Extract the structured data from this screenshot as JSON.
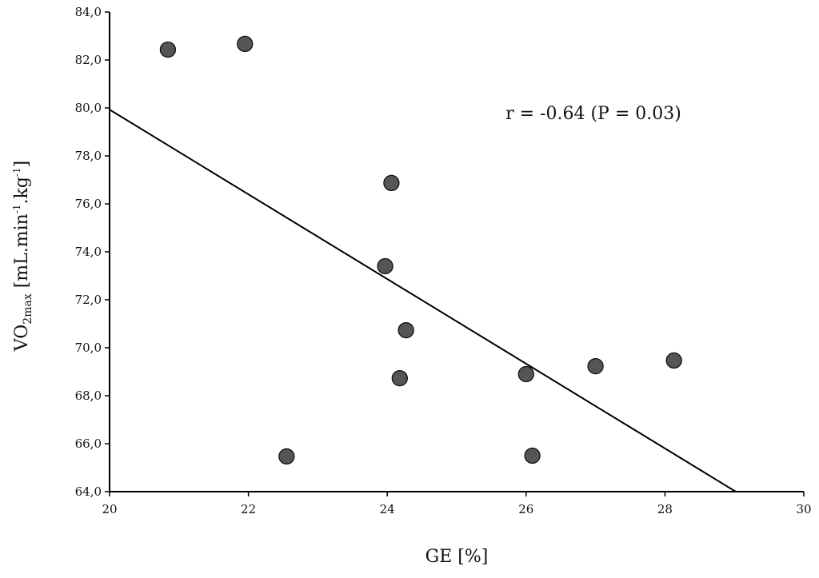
{
  "chart_data": {
    "type": "scatter",
    "title": "",
    "xlabel": "GE [%]",
    "ylabel": {
      "main": "VO",
      "sub": "2max",
      "unit_a": " [mL.min",
      "sup_a": "-1",
      "unit_b": ".kg",
      "sup_b": "-1",
      "close": "]"
    },
    "xlim": [
      20,
      30
    ],
    "ylim": [
      64,
      84
    ],
    "x_ticks": [
      20,
      22,
      24,
      26,
      28,
      30
    ],
    "x_tick_labels": [
      "20",
      "22",
      "24",
      "26",
      "28",
      "30"
    ],
    "y_ticks": [
      64,
      66,
      68,
      70,
      72,
      74,
      76,
      78,
      80,
      82,
      84
    ],
    "y_tick_labels": [
      "64,0",
      "66,0",
      "68,0",
      "70,0",
      "72,0",
      "74,0",
      "76,0",
      "78,0",
      "80,0",
      "82,0",
      "84,0"
    ],
    "grid": false,
    "points": [
      {
        "x": 20.84,
        "y": 82.43
      },
      {
        "x": 21.95,
        "y": 82.67
      },
      {
        "x": 24.06,
        "y": 76.87
      },
      {
        "x": 23.97,
        "y": 73.4
      },
      {
        "x": 24.27,
        "y": 70.73
      },
      {
        "x": 24.18,
        "y": 68.73
      },
      {
        "x": 22.55,
        "y": 65.47
      },
      {
        "x": 26.0,
        "y": 68.9
      },
      {
        "x": 26.09,
        "y": 65.5
      },
      {
        "x": 27.0,
        "y": 69.23
      },
      {
        "x": 28.13,
        "y": 69.47
      }
    ],
    "regression_line": {
      "x": [
        20,
        29.02
      ],
      "y": [
        79.93,
        64
      ]
    },
    "annotation": "r = -0.64 (P = 0.03)",
    "point_color": "#555555",
    "line_color": "#000000"
  }
}
